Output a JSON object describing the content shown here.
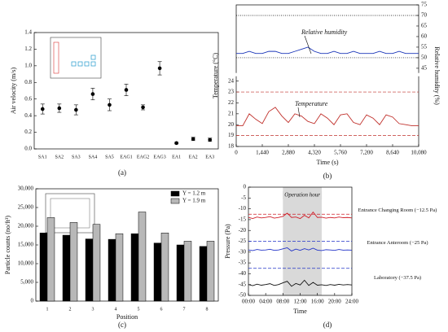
{
  "chart_data": [
    {
      "type": "scatter",
      "panel_label": "(a)",
      "ylabel": "Air velocity (m/s)",
      "categories": [
        "SA1",
        "SA2",
        "SA3",
        "SA4",
        "SA5",
        "EAG1",
        "EAG2",
        "EAG3",
        "EA1",
        "EA2",
        "EA3"
      ],
      "values": [
        0.48,
        0.49,
        0.47,
        0.66,
        0.53,
        0.71,
        0.5,
        0.97,
        0.07,
        0.12,
        0.11
      ],
      "errors": [
        0.06,
        0.05,
        0.06,
        0.07,
        0.07,
        0.07,
        0.03,
        0.08,
        0.01,
        0.02,
        0.02
      ],
      "color": "#000000",
      "ylim": [
        0,
        1.4
      ],
      "yticks": [
        {
          "value": 0,
          "label": "0.0"
        },
        0.2,
        0.4,
        0.6,
        0.8,
        {
          "value": 1,
          "label": "1.0"
        },
        1.2,
        1.4
      ]
    },
    {
      "type": "line",
      "panel_label": "(b)",
      "xlabel": "Time (s)",
      "ylabel": "Temperature (°C)",
      "y2label": "Relative humidity (%)",
      "annotations": [
        "Relative humidity",
        "Temperature"
      ],
      "x": [
        0,
        360,
        720,
        1080,
        1440,
        1800,
        2160,
        2520,
        2880,
        3240,
        3600,
        3960,
        4320,
        4680,
        5040,
        5400,
        5760,
        6120,
        6480,
        6840,
        7200,
        7560,
        7920,
        8280,
        8640,
        9000,
        9360,
        9720,
        10080
      ],
      "series": [
        {
          "name": "Relative humidity",
          "color": "#1a35b8",
          "axis": "y2",
          "values": [
            52,
            52,
            53,
            52,
            52,
            53,
            53,
            52,
            52,
            53,
            54,
            55,
            53,
            52,
            52,
            53,
            52,
            52,
            53,
            52,
            52,
            52,
            53,
            52,
            52,
            53,
            52,
            52,
            52
          ]
        },
        {
          "name": "Temperature",
          "color": "#c0302b",
          "values": [
            19.9,
            19.9,
            21.0,
            20.5,
            20.1,
            21.2,
            21.6,
            20.8,
            20.2,
            21.0,
            20.8,
            20.3,
            20.1,
            21.0,
            20.6,
            20.0,
            20.9,
            21.0,
            20.2,
            20.0,
            20.9,
            20.6,
            20.0,
            20.9,
            20.7,
            20.1,
            20.0,
            19.9,
            19.9
          ]
        }
      ],
      "reference_lines": [
        {
          "axis": "y",
          "value": 23,
          "color": "#c0302b"
        },
        {
          "axis": "y",
          "value": 19,
          "color": "#c0302b"
        },
        {
          "axis": "y2",
          "value": 70,
          "color": "#000000"
        },
        {
          "axis": "y2",
          "value": 50,
          "color": "#000000"
        }
      ],
      "xlim": [
        0,
        10080
      ],
      "xticks": [
        0,
        {
          "value": 1440,
          "label": "1,440"
        },
        {
          "value": 2880,
          "label": "2,880"
        },
        {
          "value": 4320,
          "label": "4,320"
        },
        {
          "value": 5760,
          "label": "5,760"
        },
        {
          "value": 7200,
          "label": "7,200"
        },
        {
          "value": 8640,
          "label": "8,640"
        },
        {
          "value": 10080,
          "label": "10,080"
        }
      ],
      "ylim": [
        18,
        31
      ],
      "yticks": [
        18,
        19,
        20,
        21,
        22,
        23,
        24
      ],
      "y2lim": [
        8,
        75
      ],
      "y2ticks": [
        45,
        50,
        55,
        60,
        65,
        70,
        75
      ]
    },
    {
      "type": "bar",
      "panel_label": "(c)",
      "xlabel": "Position",
      "ylabel": "Particle counts (no/ft³)",
      "legend": "upper right",
      "categories": [
        "1",
        "2",
        "3",
        "4",
        "5",
        "6",
        "7",
        "8"
      ],
      "series": [
        {
          "name": "Y = 1.2 m",
          "color": "#000000",
          "values": [
            18200,
            17600,
            16600,
            16500,
            18000,
            15500,
            15000,
            14600
          ]
        },
        {
          "name": "Y = 1.9 m",
          "color": "#b8b8b8",
          "values": [
            22300,
            21000,
            20500,
            18000,
            23800,
            18200,
            16000,
            16000
          ]
        }
      ],
      "ylim": [
        0,
        30000
      ],
      "yticks": [
        0,
        {
          "value": 5000,
          "label": "5,000"
        },
        {
          "value": 10000,
          "label": "10,000"
        },
        {
          "value": 15000,
          "label": "15,000"
        },
        {
          "value": 20000,
          "label": "20,000"
        },
        {
          "value": 25000,
          "label": "25,000"
        },
        {
          "value": 30000,
          "label": "30,000"
        }
      ]
    },
    {
      "type": "line",
      "panel_label": "(d)",
      "xlabel": "Time",
      "ylabel": "Pressure (Pa)",
      "highlight": {
        "range": [
          8,
          17
        ],
        "label": "Operation hour"
      },
      "x": [
        0,
        1,
        2,
        3,
        4,
        5,
        6,
        7,
        8,
        9,
        10,
        11,
        12,
        13,
        14,
        15,
        16,
        17,
        18,
        19,
        20,
        21,
        22,
        23,
        24
      ],
      "series": [
        {
          "name": "Entrance Changing Room (−12.5 Pa)",
          "color": "#d0202a",
          "values": [
            -14,
            -14.5,
            -13.8,
            -14.2,
            -14,
            -13.6,
            -14.3,
            -14,
            -13.5,
            -12,
            -14,
            -13.8,
            -14.5,
            -13,
            -14.2,
            -11.5,
            -14,
            -13.9,
            -14.3,
            -14,
            -14.2,
            -13.8,
            -14.1,
            -14,
            -14.2
          ]
        },
        {
          "name": "Entrance Anteroom (−25 Pa)",
          "color": "#2233c8",
          "values": [
            -29,
            -29.3,
            -28.8,
            -29.1,
            -29,
            -28.7,
            -29.2,
            -29,
            -28.5,
            -28,
            -29.5,
            -28.6,
            -29.2,
            -28.4,
            -29,
            -28.2,
            -29.1,
            -29.3,
            -28.9,
            -29,
            -29.2,
            -28.8,
            -29.1,
            -29,
            -29.1
          ]
        },
        {
          "name": "Laboratory (−37.5 Pa)",
          "color": "#111111",
          "values": [
            -45,
            -45.5,
            -44.8,
            -45.3,
            -45,
            -44.6,
            -45.4,
            -45,
            -44.2,
            -43.5,
            -45.8,
            -44.5,
            -45.2,
            -43,
            -45.4,
            -44,
            -45.3,
            -45.1,
            -45.4,
            -45,
            -45.3,
            -44.9,
            -45.2,
            -45,
            -45.2
          ]
        }
      ],
      "reference_lines": [
        {
          "axis": "y",
          "value": -12.5,
          "color": "#d0202a"
        },
        {
          "axis": "y",
          "value": -25,
          "color": "#2233c8"
        },
        {
          "axis": "y",
          "value": -37.5,
          "color": "#2233c8"
        }
      ],
      "xlim": [
        0,
        24
      ],
      "xticks": [
        {
          "value": 0,
          "label": "00:00"
        },
        {
          "value": 4,
          "label": "04:00"
        },
        {
          "value": 8,
          "label": "08:00"
        },
        {
          "value": 12,
          "label": "12:00"
        },
        {
          "value": 16,
          "label": "16:00"
        },
        {
          "value": 20,
          "label": "20:00"
        },
        {
          "value": 24,
          "label": "24:00"
        }
      ],
      "ylim": [
        -50,
        0
      ],
      "yticks": [
        -50,
        -45,
        -40,
        -35,
        -30,
        -25,
        -20,
        -15,
        -10,
        -5,
        0
      ]
    }
  ]
}
